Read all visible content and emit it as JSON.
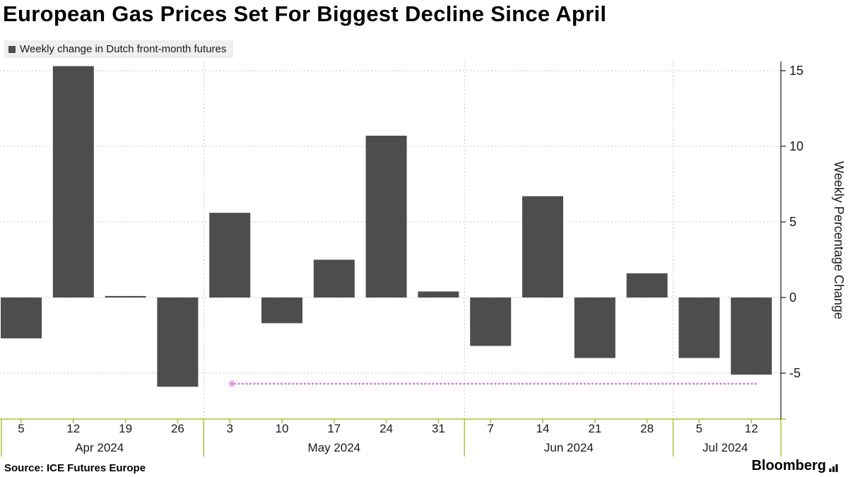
{
  "title": "European Gas Prices Set For Biggest Decline Since April",
  "legend": {
    "label": "Weekly change in Dutch front-month futures",
    "swatch_color": "#4d4d4d"
  },
  "source": "Source: ICE Futures Europe",
  "branding": "Bloomberg",
  "chart_data": {
    "type": "bar",
    "categories": [
      "5",
      "12",
      "19",
      "26",
      "3",
      "10",
      "17",
      "24",
      "31",
      "7",
      "14",
      "21",
      "28",
      "5",
      "12"
    ],
    "month_groups": [
      {
        "label": "Apr 2024",
        "start": 0,
        "end": 3
      },
      {
        "label": "May 2024",
        "start": 4,
        "end": 8
      },
      {
        "label": "Jun 2024",
        "start": 9,
        "end": 12
      },
      {
        "label": "Jul 2024",
        "start": 13,
        "end": 14
      }
    ],
    "values": [
      -2.7,
      15.3,
      0.1,
      -5.9,
      5.6,
      -1.7,
      2.5,
      10.7,
      0.4,
      -3.2,
      6.7,
      -4.0,
      1.6,
      -4.0,
      -5.1
    ],
    "ylabel": "Weekly Percentage Change",
    "y_ticks": [
      -5,
      0,
      5,
      10,
      15
    ],
    "ylim": [
      -8,
      15.6
    ],
    "bar_color": "#4d4d4d",
    "grid": true,
    "legend_position": "top-left",
    "reference_line": {
      "value": -5.7,
      "start_index": 4,
      "end_index": 14,
      "color": "#d987d9",
      "style": "dotted"
    },
    "axis_color": "#a4c639",
    "grid_color": "#c8c8c8",
    "tick_label_color": "#1a1a1a"
  }
}
